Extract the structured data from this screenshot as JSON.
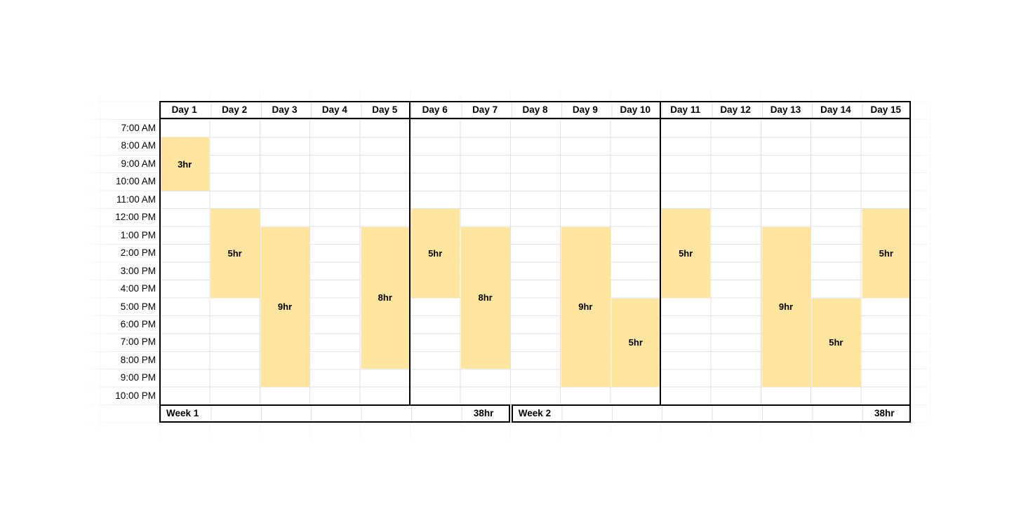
{
  "schedule": {
    "days": [
      "Day 1",
      "Day 2",
      "Day 3",
      "Day 4",
      "Day 5",
      "Day 6",
      "Day 7",
      "Day 8",
      "Day 9",
      "Day 10",
      "Day 11",
      "Day 12",
      "Day 13",
      "Day 14",
      "Day 15"
    ],
    "times": [
      "7:00 AM",
      "8:00 AM",
      "9:00 AM",
      "10:00 AM",
      "11:00 AM",
      "12:00 PM",
      "1:00 PM",
      "2:00 PM",
      "3:00 PM",
      "4:00 PM",
      "5:00 PM",
      "6:00 PM",
      "7:00 PM",
      "8:00 PM",
      "9:00 PM",
      "10:00 PM"
    ],
    "shifts": [
      {
        "day": "Day 1",
        "start": "8:00 AM",
        "end": "11:00 AM",
        "label": "3hr"
      },
      {
        "day": "Day 2",
        "start": "12:00 PM",
        "end": "5:00 PM",
        "label": "5hr"
      },
      {
        "day": "Day 3",
        "start": "1:00 PM",
        "end": "10:00 PM",
        "label": "9hr"
      },
      {
        "day": "Day 5",
        "start": "1:00 PM",
        "end": "9:00 PM",
        "label": "8hr"
      },
      {
        "day": "Day 6",
        "start": "12:00 PM",
        "end": "5:00 PM",
        "label": "5hr"
      },
      {
        "day": "Day 7",
        "start": "1:00 PM",
        "end": "9:00 PM",
        "label": "8hr"
      },
      {
        "day": "Day 9",
        "start": "1:00 PM",
        "end": "10:00 PM",
        "label": "9hr"
      },
      {
        "day": "Day 10",
        "start": "5:00 PM",
        "end": "10:00 PM",
        "label": "5hr"
      },
      {
        "day": "Day 11",
        "start": "12:00 PM",
        "end": "5:00 PM",
        "label": "5hr"
      },
      {
        "day": "Day 13",
        "start": "1:00 PM",
        "end": "10:00 PM",
        "label": "9hr"
      },
      {
        "day": "Day 14",
        "start": "5:00 PM",
        "end": "10:00 PM",
        "label": "5hr"
      },
      {
        "day": "Day 15",
        "start": "12:00 PM",
        "end": "5:00 PM",
        "label": "5hr"
      }
    ],
    "weeks": [
      {
        "label": "Week 1",
        "total": "38hr",
        "from_day": "Day 1",
        "to_day": "Day 7"
      },
      {
        "label": "Week 2",
        "total": "38hr",
        "from_day": "Day 8",
        "to_day": "Day 15"
      }
    ],
    "week_dividers_after": [
      "Day 5",
      "Day 10"
    ]
  },
  "colors": {
    "shift_fill": "#ffe5a0",
    "table_border": "#000000",
    "grid_line": "#e0e2e5",
    "grid_line_faded": "#eaecef",
    "background": "#ffffff"
  }
}
